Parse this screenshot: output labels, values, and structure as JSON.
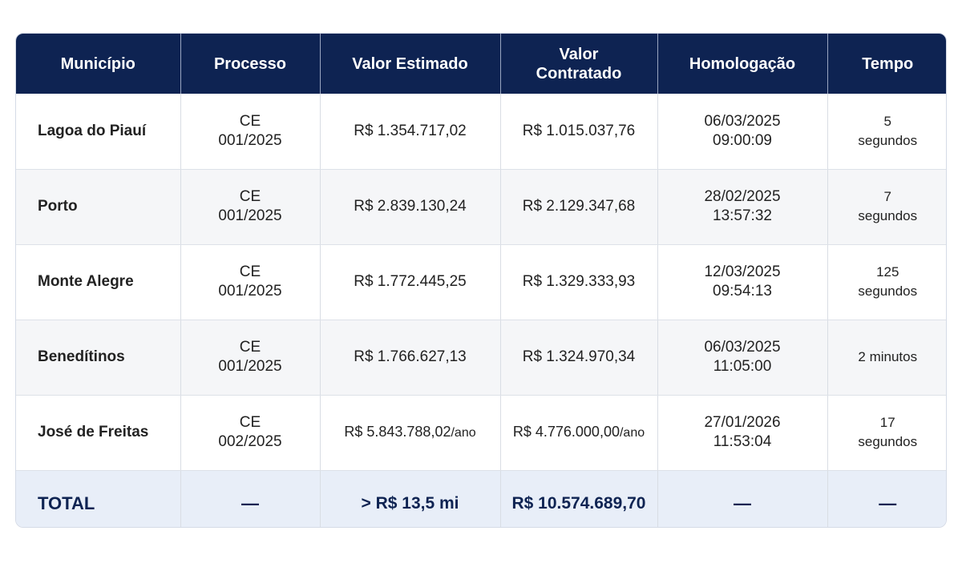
{
  "headers": {
    "municipio": "Município",
    "processo": "Processo",
    "valor_estimado": "Valor Estimado",
    "valor_contratado": "Valor Contratado",
    "homologacao": "Homologação",
    "tempo": "Tempo"
  },
  "rows": [
    {
      "municipio": "Lagoa do Piauí",
      "processo_1": "CE",
      "processo_2": "001/2025",
      "valor_estimado": "R$ 1.354.717,02",
      "valor_contratado": "R$ 1.015.037,76",
      "homologacao_data": "06/03/2025",
      "homologacao_hora": "09:00:09",
      "tempo_1": "5",
      "tempo_2": "segundos"
    },
    {
      "municipio": "Porto",
      "processo_1": "CE",
      "processo_2": "001/2025",
      "valor_estimado": "R$ 2.839.130,24",
      "valor_contratado": "R$ 2.129.347,68",
      "homologacao_data": "28/02/2025",
      "homologacao_hora": "13:57:32",
      "tempo_1": "7",
      "tempo_2": "segundos"
    },
    {
      "municipio": "Monte Alegre",
      "processo_1": "CE",
      "processo_2": "001/2025",
      "valor_estimado": "R$ 1.772.445,25",
      "valor_contratado": "R$ 1.329.333,93",
      "homologacao_data": "12/03/2025",
      "homologacao_hora": "09:54:13",
      "tempo_1": "125",
      "tempo_2": "segundos"
    },
    {
      "municipio": "Benedítinos",
      "processo_1": "CE",
      "processo_2": "001/2025",
      "valor_estimado": "R$ 1.766.627,13",
      "valor_contratado": "R$ 1.324.970,34",
      "homologacao_data": "06/03/2025",
      "homologacao_hora": "11:05:00",
      "tempo_1": "2 minutos",
      "tempo_2": ""
    },
    {
      "municipio": "José de Freitas",
      "processo_1": "CE",
      "processo_2": "002/2025",
      "valor_estimado": "R$ 5.843.788,02",
      "valor_estimado_suffix": "/ano",
      "valor_contratado": "R$ 4.776.000,00",
      "valor_contratado_suffix": "/ano",
      "homologacao_data": "27/01/2026",
      "homologacao_hora": "11:53:04",
      "tempo_1": "17",
      "tempo_2": "segundos"
    }
  ],
  "total": {
    "label": "TOTAL",
    "processo": "—",
    "valor_estimado": "> R$ 13,5 mi",
    "valor_contratado": "R$ 10.574.689,70",
    "homologacao": "—",
    "tempo": "—"
  }
}
